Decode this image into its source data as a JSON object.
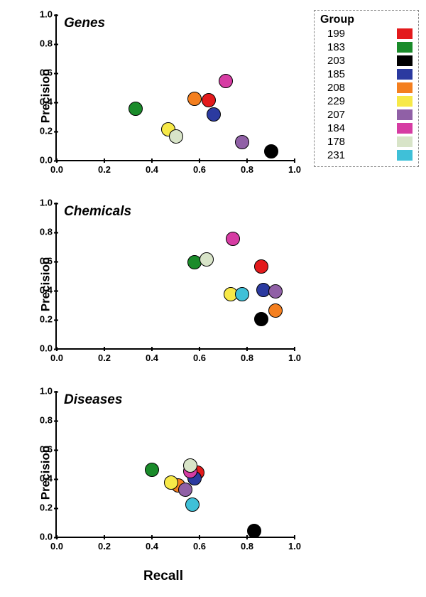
{
  "global": {
    "xlabel": "Recall",
    "ylabel": "Precision",
    "xlim": [
      0.0,
      1.0
    ],
    "ylim": [
      0.0,
      1.0
    ],
    "xtick_step": 0.2,
    "ytick_step": 0.2,
    "marker_size": 20,
    "marker_border": "#000000",
    "marker_border_width": 1.2,
    "tick_fontsize": 13,
    "label_fontsize": 17,
    "title_fontsize": 19,
    "background": "#ffffff",
    "axis_color": "#000000"
  },
  "legend": {
    "title": "Group",
    "items": [
      {
        "label": "199",
        "color": "#e31a1c"
      },
      {
        "label": "183",
        "color": "#1a8b2a"
      },
      {
        "label": "203",
        "color": "#000000"
      },
      {
        "label": "185",
        "color": "#2b3aa0"
      },
      {
        "label": "208",
        "color": "#f47f1f"
      },
      {
        "label": "229",
        "color": "#f7e948"
      },
      {
        "label": "207",
        "color": "#9060a6"
      },
      {
        "label": "184",
        "color": "#d63ca3"
      },
      {
        "label": "178",
        "color": "#d8e4c8"
      },
      {
        "label": "231",
        "color": "#3fc0d8"
      }
    ]
  },
  "panels": [
    {
      "title": "Genes",
      "points": [
        {
          "x": 0.64,
          "y": 0.41,
          "color": "#e31a1c"
        },
        {
          "x": 0.33,
          "y": 0.35,
          "color": "#1a8b2a"
        },
        {
          "x": 0.9,
          "y": 0.06,
          "color": "#000000"
        },
        {
          "x": 0.66,
          "y": 0.31,
          "color": "#2b3aa0"
        },
        {
          "x": 0.58,
          "y": 0.42,
          "color": "#f47f1f"
        },
        {
          "x": 0.47,
          "y": 0.21,
          "color": "#f7e948"
        },
        {
          "x": 0.78,
          "y": 0.12,
          "color": "#9060a6"
        },
        {
          "x": 0.71,
          "y": 0.54,
          "color": "#d63ca3"
        },
        {
          "x": 0.5,
          "y": 0.16,
          "color": "#d8e4c8"
        }
      ]
    },
    {
      "title": "Chemicals",
      "points": [
        {
          "x": 0.86,
          "y": 0.56,
          "color": "#e31a1c"
        },
        {
          "x": 0.58,
          "y": 0.59,
          "color": "#1a8b2a"
        },
        {
          "x": 0.86,
          "y": 0.2,
          "color": "#000000"
        },
        {
          "x": 0.87,
          "y": 0.4,
          "color": "#2b3aa0"
        },
        {
          "x": 0.92,
          "y": 0.26,
          "color": "#f47f1f"
        },
        {
          "x": 0.73,
          "y": 0.37,
          "color": "#f7e948"
        },
        {
          "x": 0.92,
          "y": 0.39,
          "color": "#9060a6"
        },
        {
          "x": 0.74,
          "y": 0.75,
          "color": "#d63ca3"
        },
        {
          "x": 0.63,
          "y": 0.61,
          "color": "#d8e4c8"
        },
        {
          "x": 0.78,
          "y": 0.37,
          "color": "#3fc0d8"
        }
      ]
    },
    {
      "title": "Diseases",
      "points": [
        {
          "x": 0.59,
          "y": 0.44,
          "color": "#e31a1c"
        },
        {
          "x": 0.4,
          "y": 0.46,
          "color": "#1a8b2a"
        },
        {
          "x": 0.83,
          "y": 0.04,
          "color": "#000000"
        },
        {
          "x": 0.58,
          "y": 0.4,
          "color": "#2b3aa0"
        },
        {
          "x": 0.51,
          "y": 0.35,
          "color": "#f47f1f"
        },
        {
          "x": 0.48,
          "y": 0.37,
          "color": "#f7e948"
        },
        {
          "x": 0.54,
          "y": 0.32,
          "color": "#9060a6"
        },
        {
          "x": 0.56,
          "y": 0.45,
          "color": "#d63ca3"
        },
        {
          "x": 0.56,
          "y": 0.49,
          "color": "#d8e4c8"
        },
        {
          "x": 0.57,
          "y": 0.22,
          "color": "#3fc0d8"
        }
      ]
    }
  ]
}
